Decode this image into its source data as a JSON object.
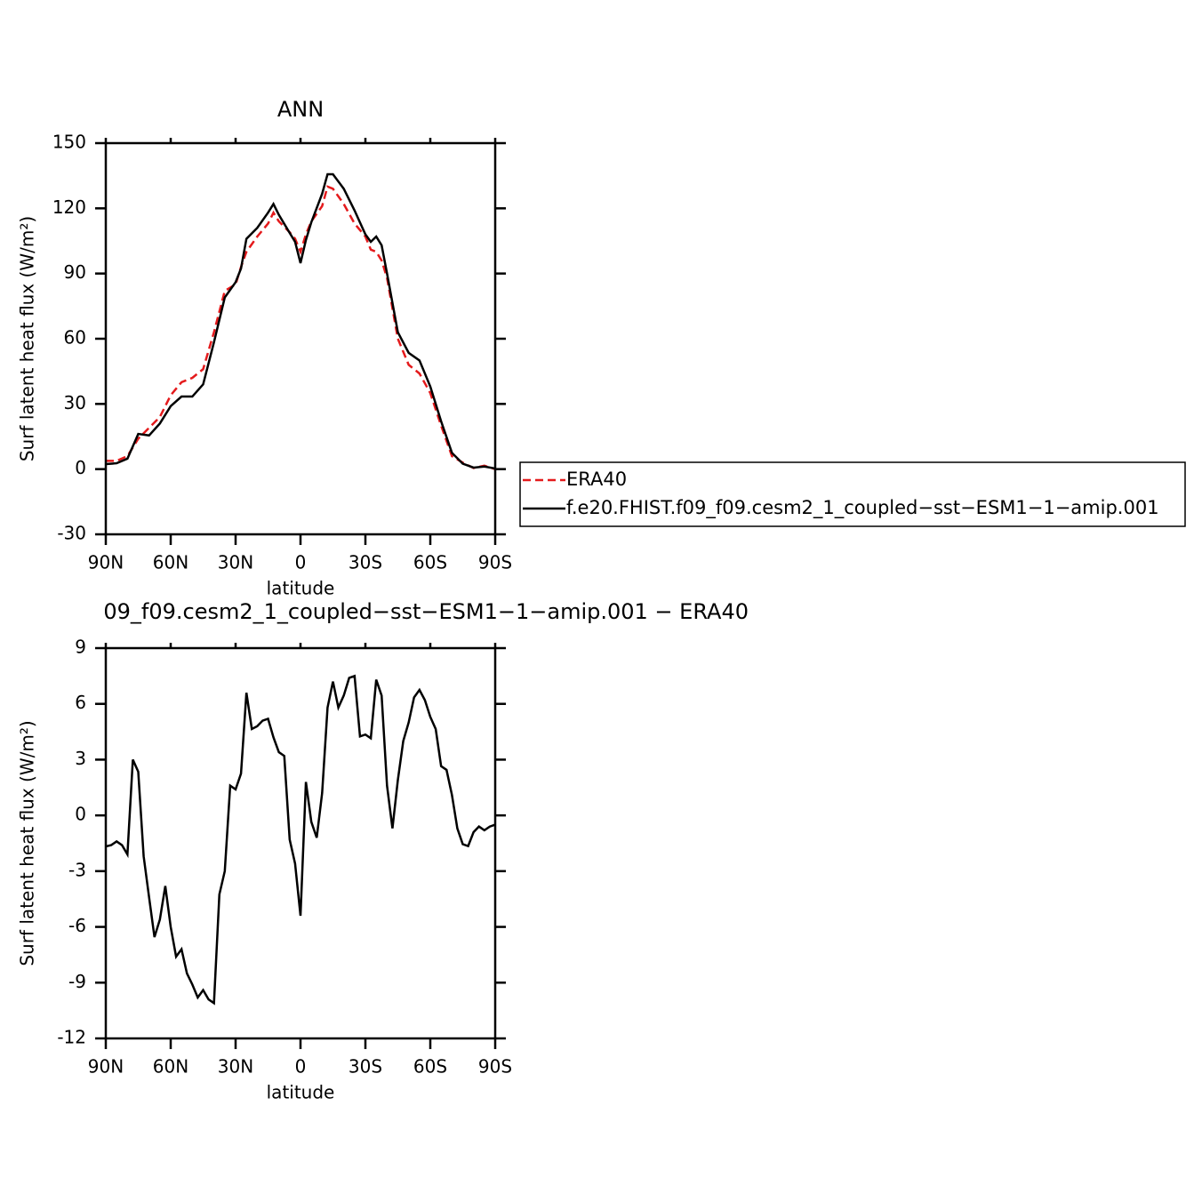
{
  "chart_data": [
    {
      "type": "line",
      "title": "ANN",
      "x_label": "latitude",
      "y_label": "Surf latent heat flux (W/m²)",
      "x": [
        90,
        85,
        80,
        75,
        70,
        65,
        60,
        55,
        50,
        45,
        40,
        35,
        30,
        27.5,
        25,
        20,
        15,
        12.5,
        10,
        5,
        2.5,
        0,
        -2.5,
        -5,
        -10,
        -12.5,
        -15,
        -20,
        -25,
        -30,
        -32.5,
        -35,
        -37.5,
        -40,
        -45,
        -50,
        -55,
        -60,
        -65,
        -70,
        -75,
        -80,
        -85,
        -90
      ],
      "series": [
        {
          "name": "ERA40",
          "color": "#e41a1c",
          "dashed": true,
          "values": [
            3.8,
            3.8,
            6,
            14,
            19,
            24,
            34,
            40,
            42,
            46,
            63,
            82,
            85,
            93,
            100,
            107,
            113,
            118,
            114,
            109,
            106,
            100,
            108,
            114,
            121,
            130,
            129,
            122,
            113,
            107,
            101,
            100,
            96,
            88,
            60,
            48,
            44,
            35,
            20,
            6,
            3,
            0.5,
            1.6,
            0
          ]
        },
        {
          "name": "f.e20.FHIST.f09_f09.cesm2_1_coupled−sst−ESM1−1−amip.001",
          "color": "#000000",
          "dashed": false,
          "values": [
            2.3,
            2.7,
            4.8,
            16.2,
            15.5,
            21,
            29,
            33.4,
            33.4,
            39,
            58.4,
            79,
            86,
            92.3,
            106,
            111,
            118,
            122,
            117,
            108.7,
            104.6,
            94.8,
            105.4,
            113.6,
            126.7,
            135.7,
            135.7,
            129,
            119,
            108,
            104.6,
            107,
            103,
            90,
            63,
            53.5,
            50,
            38,
            22,
            7.5,
            2.5,
            0.7,
            1.2,
            0.3
          ]
        }
      ],
      "xlim": [
        90,
        -90
      ],
      "xticks": [
        {
          "value": 90,
          "label": "90N"
        },
        {
          "value": 60,
          "label": "60N"
        },
        {
          "value": 30,
          "label": "30N"
        },
        0,
        {
          "value": -30,
          "label": "30S"
        },
        {
          "value": -60,
          "label": "60S"
        },
        {
          "value": -90,
          "label": "90S"
        }
      ],
      "ylim": [
        -30,
        150
      ],
      "yticks": [
        -30,
        0,
        30,
        60,
        90,
        120,
        150
      ],
      "legend": "right"
    },
    {
      "type": "line",
      "title": "09_f09.cesm2_1_coupled−sst−ESM1−1−amip.001 − ERA40",
      "x_label": "latitude",
      "y_label": "Surf latent heat flux (W/m²)",
      "x": [
        90,
        87.5,
        85,
        82.5,
        80,
        77.5,
        75,
        72.5,
        70,
        67.5,
        65,
        62.5,
        60,
        57.5,
        55,
        52.5,
        50,
        47.5,
        45,
        42.5,
        40,
        37.5,
        35,
        32.5,
        30,
        27.5,
        25,
        22.5,
        20,
        17.5,
        15,
        12.5,
        10,
        7.5,
        5,
        2.5,
        0,
        -2.5,
        -5,
        -7.5,
        -10,
        -12.5,
        -15,
        -17.5,
        -20,
        -22.5,
        -25,
        -27.5,
        -30,
        -32.5,
        -35,
        -37.5,
        -40,
        -42.5,
        -45,
        -47.5,
        -50,
        -52.5,
        -55,
        -57.5,
        -60,
        -62.5,
        -65,
        -67.5,
        -70,
        -72.5,
        -75,
        -77.5,
        -80,
        -82.5,
        -85,
        -87.5,
        -90
      ],
      "values": [
        -1.67,
        -1.6,
        -1.4,
        -1.6,
        -2.1,
        3.0,
        2.35,
        -2.2,
        -4.4,
        -6.55,
        -5.6,
        -3.8,
        -6,
        -7.6,
        -7.2,
        -8.5,
        -9.1,
        -9.8,
        -9.4,
        -9.9,
        -10.1,
        -4.25,
        -3,
        1.6,
        1.4,
        2.25,
        6.6,
        4.65,
        4.8,
        5.1,
        5.2,
        4.2,
        3.4,
        3.2,
        -1.3,
        -2.6,
        -5.4,
        1.8,
        -0.35,
        -1.2,
        1.2,
        5.8,
        7.2,
        5.8,
        6.45,
        7.4,
        7.5,
        4.25,
        4.35,
        4.15,
        7.3,
        6.45,
        1.6,
        -0.7,
        1.9,
        4,
        5.0,
        6.35,
        6.75,
        6.2,
        5.3,
        4.65,
        2.65,
        2.45,
        1.1,
        -0.7,
        -1.55,
        -1.65,
        -0.9,
        -0.6,
        -0.8,
        -0.6,
        -0.5
      ],
      "color": "#000000",
      "xlim": [
        90,
        -90
      ],
      "xticks": [
        {
          "value": 90,
          "label": "90N"
        },
        {
          "value": 60,
          "label": "60N"
        },
        {
          "value": 30,
          "label": "30N"
        },
        0,
        {
          "value": -30,
          "label": "30S"
        },
        {
          "value": -60,
          "label": "60S"
        },
        {
          "value": -90,
          "label": "90S"
        }
      ],
      "ylim": [
        -12,
        9
      ],
      "yticks": [
        -12,
        -9,
        -6,
        -3,
        0,
        3,
        6,
        9
      ]
    }
  ]
}
